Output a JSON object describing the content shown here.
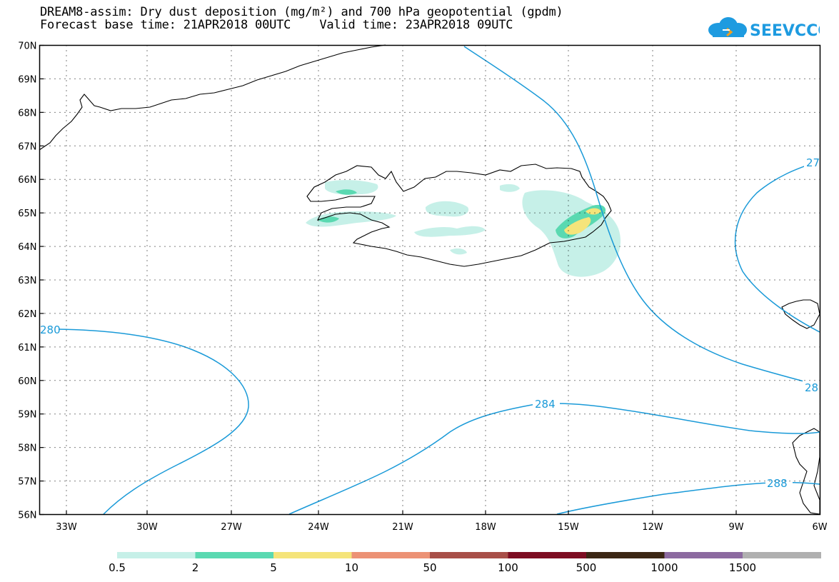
{
  "header": {
    "title_line1": "DREAM8-assim: Dry dust deposition (mg/m²) and 700 hPa geopotential (gpdm)",
    "title_line2": "Forecast base time: 21APR2018 00UTC    Valid time: 23APR2018 09UTC"
  },
  "logo": {
    "text": "SEEVCCC",
    "color": "#1e9be0"
  },
  "map": {
    "lat_labels": [
      "70N",
      "69N",
      "68N",
      "67N",
      "66N",
      "65N",
      "64N",
      "63N",
      "62N",
      "61N",
      "60N",
      "59N",
      "58N",
      "57N",
      "56N"
    ],
    "lon_labels": [
      "33W",
      "30W",
      "27W",
      "24W",
      "21W",
      "18W",
      "15W",
      "12W",
      "9W",
      "6W"
    ],
    "contour_color": "#1a9ad8",
    "contour_labels": [
      "27",
      "280",
      "28",
      "284",
      "288"
    ]
  },
  "legend": {
    "colors": [
      "#c6f0e8",
      "#5ad9b1",
      "#f5e47a",
      "#ec9275",
      "#a84f48",
      "#7d0d22",
      "#3b2614",
      "#8c6aa0",
      "#b0b0b0"
    ],
    "labels": [
      "0.5",
      "2",
      "5",
      "10",
      "50",
      "100",
      "500",
      "1000",
      "1500"
    ]
  }
}
